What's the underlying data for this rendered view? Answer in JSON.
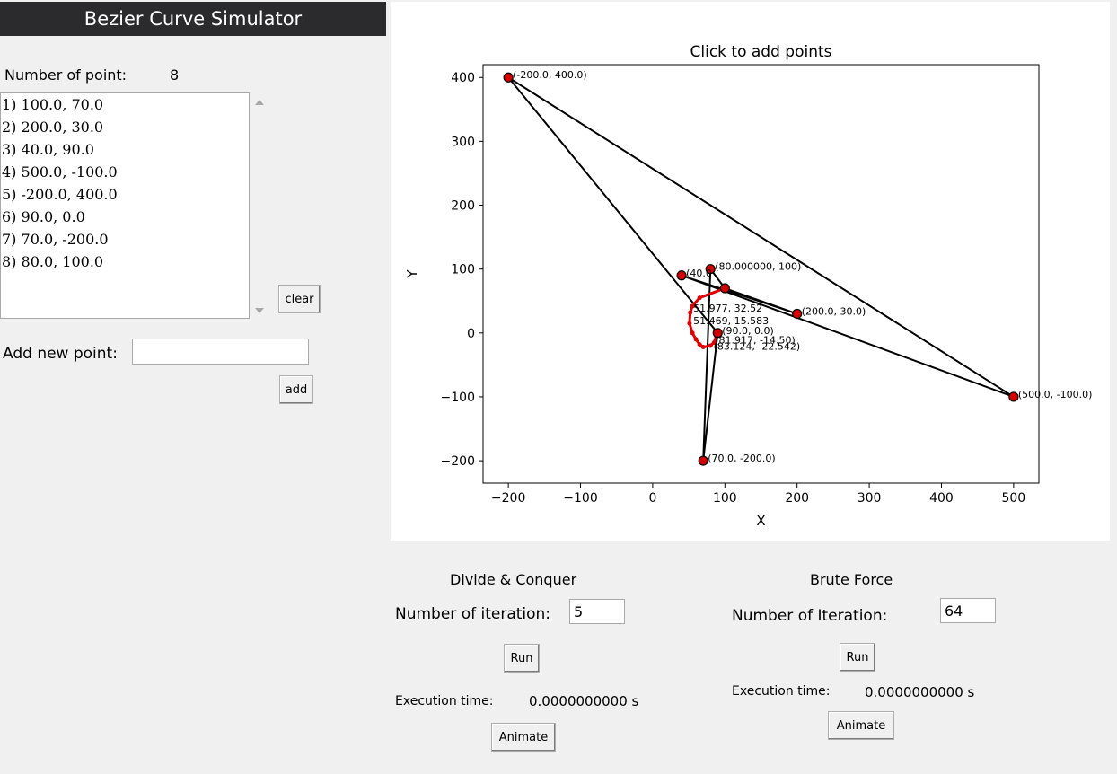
{
  "app": {
    "title": "Bezier Curve Simulator"
  },
  "left_panel": {
    "count_label": "Number of point:",
    "count_value": "8",
    "points": [
      "1) 100.0, 70.0",
      "2) 200.0, 30.0",
      "3) 40.0, 90.0",
      "4) 500.0, -100.0",
      "5) -200.0, 400.0",
      "6) 90.0, 0.0",
      "7) 70.0, -200.0",
      "8) 80.0, 100.0"
    ],
    "clear_label": "clear",
    "add_point_label": "Add new point:",
    "add_point_value": "",
    "add_label": "add"
  },
  "chart_data": {
    "type": "line",
    "title": "Click to add points",
    "xlabel": "X",
    "ylabel": "Y",
    "xlim": [
      -235,
      535
    ],
    "ylim": [
      -235,
      420
    ],
    "xticks": [
      -200,
      -100,
      0,
      100,
      200,
      300,
      400,
      500
    ],
    "yticks": [
      -200,
      -100,
      0,
      100,
      200,
      300,
      400
    ],
    "control_points": [
      [
        100,
        70
      ],
      [
        200,
        30
      ],
      [
        40,
        90
      ],
      [
        500,
        -100
      ],
      [
        -200,
        400
      ],
      [
        90,
        0
      ],
      [
        70,
        -200
      ],
      [
        80,
        100
      ]
    ],
    "labels": [
      {
        "x": -200,
        "y": 400,
        "text": "(-200.0, 400.0)"
      },
      {
        "x": 500,
        "y": -100,
        "text": "(500.0, -100.0)"
      },
      {
        "x": 70,
        "y": -200,
        "text": "(70.0, -200.0)"
      },
      {
        "x": 200,
        "y": 30,
        "text": "(200.0, 30.0)"
      },
      {
        "x": 80,
        "y": 100,
        "text": "(80.000000, 100)"
      },
      {
        "x": 40,
        "y": 90,
        "text": "(40.0"
      },
      {
        "x": 50,
        "y": 35,
        "text": "51.977, 32.52"
      },
      {
        "x": 50,
        "y": 15,
        "text": "51.469, 15.583"
      },
      {
        "x": 90,
        "y": 0,
        "text": "(90.0, 0.0)"
      },
      {
        "x": 80,
        "y": -15,
        "text": "(81.917, -14.50)"
      },
      {
        "x": 78,
        "y": -25,
        "text": "(83.124, -22.542)"
      }
    ],
    "curve": [
      [
        100,
        70
      ],
      [
        65,
        55
      ],
      [
        55,
        42
      ],
      [
        52,
        32
      ],
      [
        51,
        15
      ],
      [
        55,
        0
      ],
      [
        60,
        -10
      ],
      [
        65,
        -18
      ],
      [
        70,
        -22
      ],
      [
        80,
        -20
      ],
      [
        85,
        -15
      ],
      [
        88,
        -5
      ],
      [
        90,
        0
      ]
    ]
  },
  "divide_conquer": {
    "title": "Divide & Conquer",
    "iter_label": "Number of iteration:",
    "iter_value": "5",
    "run_label": "Run",
    "exec_label": "Execution time:",
    "exec_value": "0.0000000000 s",
    "animate_label": "Animate"
  },
  "brute_force": {
    "title": "Brute Force",
    "iter_label": "Number of Iteration:",
    "iter_value": "64",
    "run_label": "Run",
    "exec_label": "Execution time:",
    "exec_value": "0.0000000000 s",
    "animate_label": "Animate"
  }
}
